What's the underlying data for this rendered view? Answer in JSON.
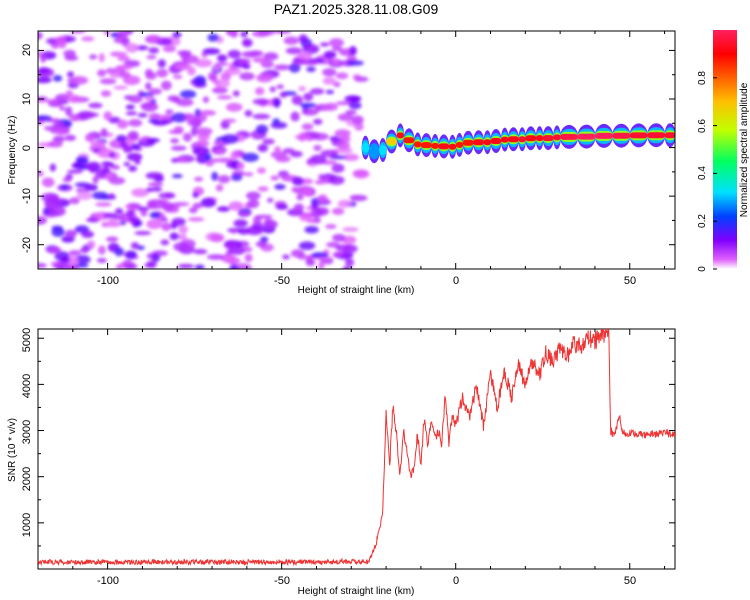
{
  "figure_title": "PAZ1.2025.328.11.08.G09",
  "chart_data": [
    {
      "type": "heatmap",
      "xlabel": "Height of straight line (km)",
      "ylabel": "Frequency (Hz)",
      "xlim": [
        -120,
        63
      ],
      "ylim": [
        -25,
        24
      ],
      "xticks": [
        -100,
        -50,
        0,
        50
      ],
      "yticks": [
        -20,
        -10,
        0,
        10,
        20
      ],
      "colorbar": {
        "label": "Normalized spectral amplitude",
        "range": [
          0.0,
          1.0
        ],
        "ticks": [
          0.0,
          0.2,
          0.4,
          0.6,
          0.8
        ],
        "colors": [
          "#ffffff",
          "#e060ff",
          "#8000ff",
          "#0040ff",
          "#00e0ff",
          "#00ff60",
          "#c0ff00",
          "#ffc000",
          "#ff6000",
          "#ff0000",
          "#ff2060"
        ]
      },
      "noise_region": {
        "x": [
          -120,
          -27
        ],
        "y": [
          -25,
          24
        ]
      },
      "signal_ridge": {
        "x": [
          -27,
          -25,
          -22,
          -20,
          -17,
          -15,
          -12,
          -10,
          -7,
          -5,
          -2,
          0,
          2,
          5,
          8,
          10,
          13,
          15,
          18,
          20,
          23,
          25,
          28,
          30,
          35,
          40,
          45,
          50,
          55,
          60,
          63
        ],
        "frequency": [
          0.5,
          -0.5,
          -1.0,
          0.0,
          2.5,
          2.5,
          0.5,
          0.8,
          0.2,
          0.5,
          0.0,
          0.3,
          0.8,
          1.2,
          1.0,
          1.2,
          1.5,
          1.8,
          1.6,
          1.8,
          2.0,
          1.9,
          2.0,
          2.2,
          2.2,
          2.3,
          2.5,
          2.4,
          2.6,
          2.5,
          2.6
        ],
        "amplitude": [
          0.35,
          0.3,
          0.25,
          0.4,
          0.95,
          0.9,
          0.85,
          0.9,
          0.85,
          0.9,
          0.95,
          0.9,
          0.85,
          0.9,
          0.95,
          0.9,
          0.95,
          0.9,
          0.95,
          0.95,
          0.9,
          0.95,
          0.95,
          0.95,
          1.0,
          1.0,
          1.0,
          0.95,
          0.95,
          0.95,
          0.95
        ]
      }
    },
    {
      "type": "line",
      "xlabel": "Height of straight line (km)",
      "ylabel": "SNR (10 * v/v)",
      "xlim": [
        -120,
        63
      ],
      "ylim": [
        0,
        5200
      ],
      "xticks": [
        -100,
        -50,
        0,
        50
      ],
      "yticks": [
        1000,
        2000,
        3000,
        4000,
        5000
      ],
      "series": [
        {
          "name": "SNR",
          "color": "#ee3333",
          "x": [
            -120,
            -100,
            -80,
            -60,
            -40,
            -25,
            -23,
            -21,
            -20,
            -19,
            -18,
            -17,
            -16,
            -15,
            -14,
            -13,
            -12,
            -11,
            -10,
            -9,
            -8,
            -7,
            -6,
            -5,
            -4,
            -3,
            -2,
            -1,
            0,
            2,
            4,
            6,
            8,
            10,
            12,
            14,
            16,
            18,
            20,
            22,
            24,
            26,
            28,
            30,
            32,
            34,
            36,
            38,
            40,
            42,
            44,
            44.5,
            45,
            46,
            47,
            48,
            50,
            55,
            60,
            63
          ],
          "y": [
            150,
            150,
            150,
            150,
            150,
            170,
            500,
            1200,
            3400,
            2200,
            3600,
            2900,
            2000,
            3000,
            2500,
            2000,
            2200,
            2900,
            2300,
            3300,
            2700,
            3200,
            2800,
            3000,
            2700,
            3800,
            2700,
            3300,
            3100,
            3700,
            3300,
            4000,
            3100,
            4200,
            3500,
            4300,
            3700,
            4400,
            4000,
            4500,
            4200,
            4700,
            4500,
            4800,
            4600,
            4900,
            4800,
            5000,
            4950,
            5050,
            5100,
            3000,
            2900,
            3000,
            3350,
            2950,
            2950,
            2900,
            2950,
            2900
          ]
        }
      ]
    }
  ]
}
